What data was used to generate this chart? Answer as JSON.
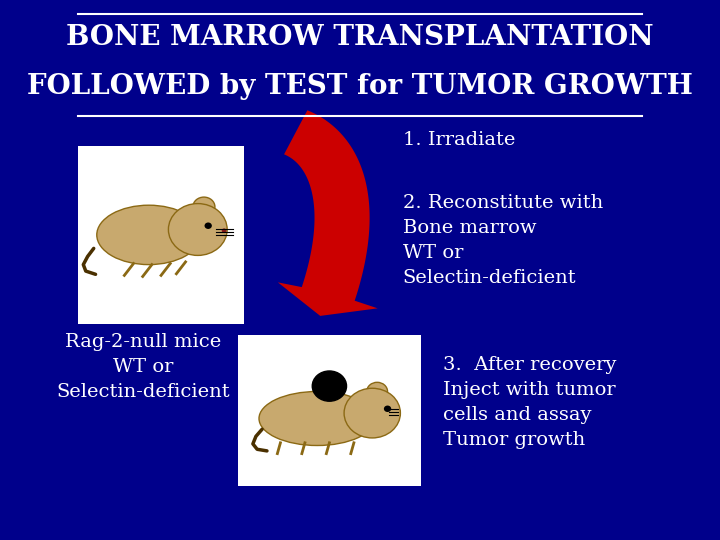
{
  "background_color": "#00008B",
  "title_line1": "BONE MARROW TRANSPLANTATION",
  "title_line2": "FOLLOWED by TEST for TUMOR GROWTH",
  "title_color": "#FFFFFF",
  "title_fontsize": 20,
  "text_color": "#FFFFFF",
  "label1": "1. Irradiate",
  "label2": "2. Reconstitute with\nBone marrow\nWT or\nSelectin-deficient",
  "label3": "3.  After recovery\nInject with tumor\ncells and assay\nTumor growth",
  "label_left": "Rag-2-null mice\nWT or\nSelectin-deficient",
  "label_fontsize": 14,
  "arrow_color": "#CC0000"
}
